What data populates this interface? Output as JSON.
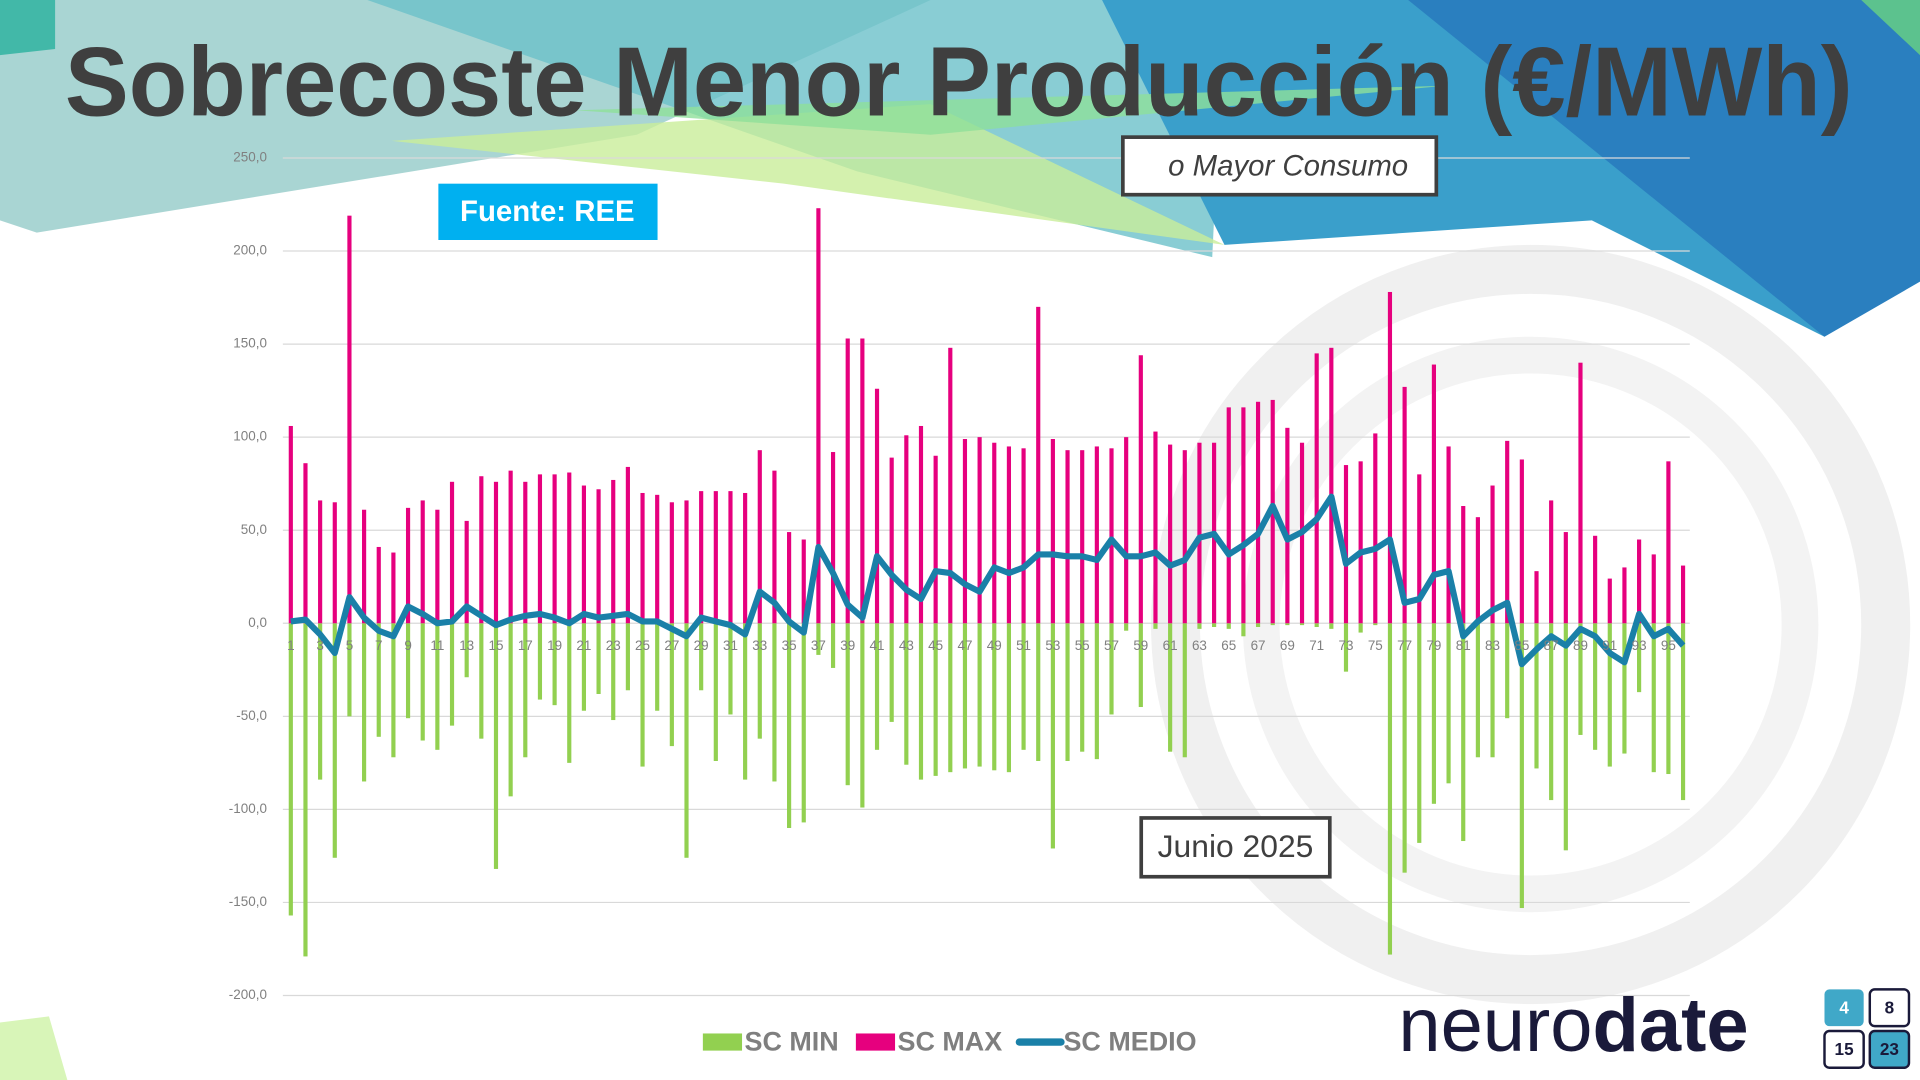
{
  "chart_data": {
    "type": "bar-line",
    "title": "Sobrecoste Menor Producción (€/MWh)",
    "subtitle": "o Mayor Consumo",
    "source": "Fuente: REE",
    "period": "Junio 2025",
    "categories": [
      1,
      null,
      3,
      null,
      5,
      null,
      7,
      null,
      9,
      null,
      11,
      null,
      13,
      null,
      15,
      null,
      17,
      null,
      19,
      null,
      21,
      null,
      23,
      null,
      25,
      null,
      27,
      null,
      29,
      null,
      31,
      null,
      33,
      null,
      35,
      null,
      37,
      null,
      39,
      null,
      41,
      null,
      43,
      null,
      45,
      null,
      47,
      null,
      49,
      null,
      51,
      null,
      53,
      null,
      55,
      null,
      57,
      null,
      59,
      null,
      61,
      null,
      63,
      null,
      65,
      null,
      67,
      null,
      69,
      null,
      71,
      null,
      73,
      null,
      75,
      null,
      77,
      null,
      79,
      null,
      81,
      null,
      83,
      null,
      85,
      null,
      87,
      null,
      89,
      null,
      91,
      null,
      93,
      null,
      95,
      null
    ],
    "series": [
      {
        "name": "SC MIN",
        "color": "#92d050",
        "kind": "bar",
        "values": [
          -157,
          -179,
          -84,
          -126,
          -50,
          -85,
          -61,
          -72,
          -51,
          -63,
          -68,
          -55,
          -29,
          -62,
          -132,
          -93,
          -72,
          -41,
          -44,
          -75,
          -47,
          -38,
          -52,
          -36,
          -77,
          -47,
          -66,
          -126,
          -36,
          -74,
          -49,
          -84,
          -62,
          -85,
          -110,
          -107,
          -17,
          -24,
          -87,
          -99,
          -68,
          -53,
          -76,
          -84,
          -82,
          -80,
          -78,
          -77,
          -79,
          -80,
          -68,
          -74,
          -121,
          -74,
          -69,
          -73,
          -49,
          -4,
          -45,
          -3,
          -69,
          -72,
          -3,
          -2,
          -3,
          -7,
          -2,
          -1,
          -1,
          -1,
          -2,
          -3,
          -26,
          -5,
          -1,
          -178,
          -134,
          -118,
          -97,
          -86,
          -117,
          -72,
          -72,
          -51,
          -153,
          -78,
          -95,
          -122,
          -60,
          -68,
          -77,
          -70,
          -37,
          -80,
          -81,
          -95
        ]
      },
      {
        "name": "SC MAX",
        "color": "#e6007e",
        "kind": "bar",
        "values": [
          106,
          86,
          66,
          65,
          219,
          61,
          41,
          38,
          62,
          66,
          61,
          76,
          55,
          79,
          76,
          82,
          76,
          80,
          80,
          81,
          74,
          72,
          77,
          84,
          70,
          69,
          65,
          66,
          71,
          71,
          71,
          70,
          93,
          82,
          49,
          45,
          223,
          92,
          153,
          153,
          126,
          89,
          101,
          106,
          90,
          148,
          99,
          100,
          97,
          95,
          94,
          170,
          99,
          93,
          93,
          95,
          94,
          100,
          144,
          103,
          96,
          93,
          97,
          97,
          116,
          116,
          119,
          120,
          105,
          97,
          145,
          148,
          85,
          87,
          102,
          178,
          127,
          80,
          139,
          95,
          63,
          57,
          74,
          98,
          88,
          28,
          66,
          49,
          140,
          47,
          24,
          30,
          45,
          37,
          87,
          31
        ]
      },
      {
        "name": "SC MEDIO",
        "color": "#1a80a8",
        "kind": "line",
        "values": [
          1,
          2,
          -6,
          -16,
          14,
          3,
          -4,
          -7,
          9,
          5,
          0,
          1,
          9,
          4,
          -1,
          2,
          4,
          5,
          3,
          0,
          5,
          3,
          4,
          5,
          1,
          1,
          -3,
          -7,
          3,
          1,
          -1,
          -6,
          17,
          11,
          1,
          -5,
          41,
          27,
          10,
          3,
          36,
          26,
          18,
          13,
          28,
          27,
          21,
          17,
          30,
          27,
          30,
          37,
          37,
          36,
          36,
          34,
          45,
          36,
          36,
          38,
          31,
          34,
          46,
          48,
          37,
          42,
          48,
          63,
          45,
          49,
          56,
          68,
          32,
          38,
          40,
          45,
          11,
          13,
          26,
          28,
          -7,
          1,
          7,
          11,
          -22,
          -14,
          -7,
          -12,
          -3,
          -7,
          -16,
          -21,
          5,
          -7,
          -3,
          -12
        ]
      }
    ],
    "ylim": [
      -200,
      250
    ],
    "yticks": [
      {
        "value": -200,
        "label": "-200,0"
      },
      {
        "value": -150,
        "label": "-150,0"
      },
      {
        "value": -100,
        "label": "-100,0"
      },
      {
        "value": -50,
        "label": "-50,0"
      },
      {
        "value": 0,
        "label": "0,0"
      },
      {
        "value": 50,
        "label": "50,0"
      },
      {
        "value": 100,
        "label": "100,0"
      },
      {
        "value": 150,
        "label": "150,0"
      },
      {
        "value": 200,
        "label": "200,0"
      },
      {
        "value": 250,
        "label": "250,0"
      }
    ],
    "grid": true,
    "legend": "bottom"
  },
  "logo": {
    "part_1": "neuro",
    "part_2": "date",
    "numbers": [
      "4",
      "8",
      "15",
      "23"
    ]
  }
}
